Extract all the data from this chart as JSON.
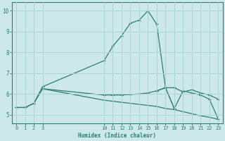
{
  "xlabel": "Humidex (Indice chaleur)",
  "xlim": [
    -0.5,
    23.5
  ],
  "ylim": [
    4.6,
    10.4
  ],
  "xticks": [
    0,
    1,
    2,
    3,
    10,
    11,
    12,
    13,
    14,
    15,
    16,
    17,
    18,
    19,
    20,
    21,
    22,
    23
  ],
  "yticks": [
    5,
    6,
    7,
    8,
    9,
    10
  ],
  "bg_color": "#cce8e8",
  "grid_color": "#add4d4",
  "line_color": "#2e7d72",
  "lines": [
    {
      "x": [
        0,
        1,
        2,
        3,
        10,
        11,
        12,
        13,
        14,
        15,
        16,
        17
      ],
      "y": [
        5.35,
        5.35,
        5.55,
        6.35,
        7.6,
        8.3,
        8.8,
        9.4,
        9.55,
        10.0,
        9.35,
        6.3
      ],
      "marker": "+",
      "linestyle": "-"
    },
    {
      "x": [
        17,
        18
      ],
      "y": [
        6.3,
        5.3
      ],
      "marker": "+",
      "linestyle": "--"
    },
    {
      "x": [
        0,
        1,
        2,
        3,
        10,
        11,
        12,
        13,
        14,
        15,
        16,
        17,
        18,
        19,
        20,
        21,
        22,
        23
      ],
      "y": [
        5.35,
        5.35,
        5.55,
        6.25,
        5.95,
        5.95,
        5.95,
        5.98,
        6.0,
        6.05,
        6.15,
        6.3,
        6.3,
        6.1,
        6.2,
        6.05,
        5.95,
        5.75
      ],
      "marker": "+",
      "linestyle": "-"
    },
    {
      "x": [
        3,
        10,
        11,
        12,
        13,
        14,
        15,
        16,
        17,
        18,
        19,
        20,
        21,
        22,
        23
      ],
      "y": [
        6.25,
        5.7,
        5.65,
        5.6,
        5.55,
        5.5,
        5.45,
        5.4,
        5.3,
        5.25,
        5.15,
        5.05,
        4.95,
        4.88,
        4.78
      ],
      "marker": null,
      "linestyle": "-"
    },
    {
      "x": [
        16,
        17,
        18,
        19,
        20,
        21,
        22,
        23
      ],
      "y": [
        6.15,
        6.3,
        5.3,
        6.15,
        6.05,
        5.95,
        5.75,
        4.8
      ],
      "marker": "+",
      "linestyle": "-"
    }
  ]
}
